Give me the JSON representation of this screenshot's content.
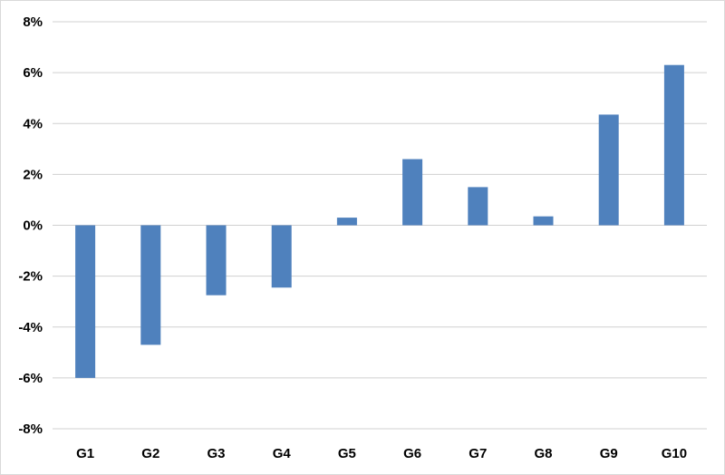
{
  "chart_data": {
    "type": "bar",
    "title": "",
    "xlabel": "",
    "ylabel": "",
    "categories": [
      "G1",
      "G2",
      "G3",
      "G4",
      "G5",
      "G6",
      "G7",
      "G8",
      "G9",
      "G10"
    ],
    "values": [
      -6.0,
      -4.7,
      -2.75,
      -2.45,
      0.3,
      2.6,
      1.5,
      0.35,
      4.35,
      6.3
    ],
    "ylim": [
      -8,
      8
    ],
    "yticks": [
      8,
      6,
      4,
      2,
      0,
      -2,
      -4,
      -6,
      -8
    ],
    "ytick_labels": [
      "8%",
      "6%",
      "4%",
      "2%",
      "0%",
      "-2%",
      "-4%",
      "-6%",
      "-8%"
    ],
    "grid": true,
    "legend": "none",
    "bar_color": "#4f81bd"
  }
}
